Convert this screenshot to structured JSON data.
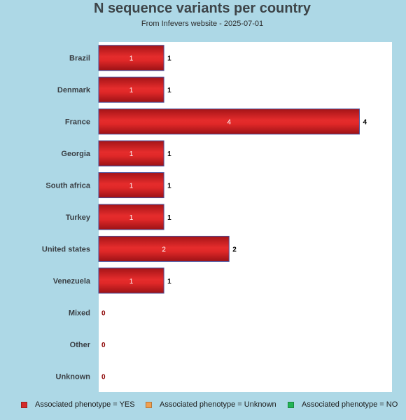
{
  "chart_data": {
    "type": "bar",
    "orientation": "horizontal",
    "title": "N sequence variants per country",
    "subtitle": "From Infevers website - 2025-07-01",
    "categories": [
      "Brazil",
      "Denmark",
      "France",
      "Georgia",
      "South africa",
      "Turkey",
      "United states",
      "Venezuela",
      "Mixed",
      "Other",
      "Unknown"
    ],
    "series": [
      {
        "name": "Associated phenotype = YES",
        "color": "#d42a2a",
        "values": [
          1,
          1,
          4,
          1,
          1,
          1,
          2,
          1,
          0,
          0,
          0
        ]
      },
      {
        "name": "Associated phenotype = Unknown",
        "color": "#f0a050",
        "values": [
          0,
          0,
          0,
          0,
          0,
          0,
          0,
          0,
          0,
          0,
          0
        ]
      },
      {
        "name": "Associated phenotype = NO",
        "color": "#22b455",
        "values": [
          0,
          0,
          0,
          0,
          0,
          0,
          0,
          0,
          0,
          0,
          0
        ]
      }
    ],
    "xlim": [
      0,
      4.5
    ],
    "grid": false,
    "legend_position": "bottom"
  }
}
